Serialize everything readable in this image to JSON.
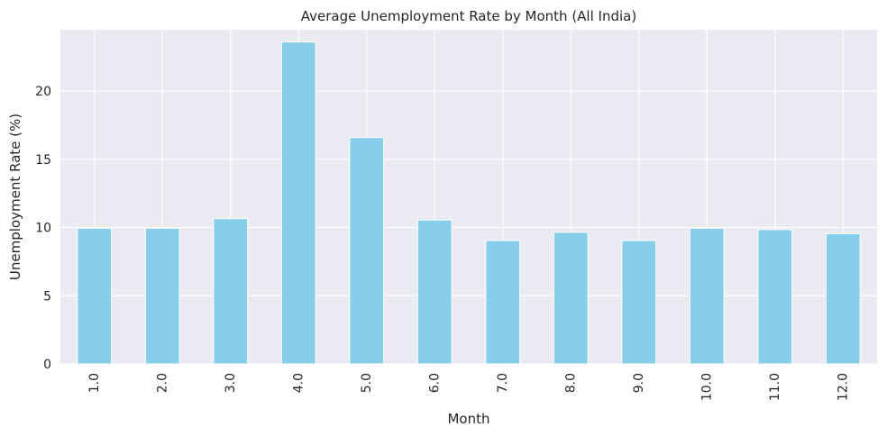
{
  "chart_data": {
    "type": "bar",
    "title": "Average Unemployment Rate by Month (All India)",
    "xlabel": "Month",
    "ylabel": "Unemployment Rate (%)",
    "categories": [
      "1.0",
      "2.0",
      "3.0",
      "4.0",
      "5.0",
      "6.0",
      "7.0",
      "8.0",
      "9.0",
      "10.0",
      "11.0",
      "12.0"
    ],
    "values": [
      9.95,
      9.95,
      10.65,
      23.6,
      16.6,
      10.55,
      9.05,
      9.65,
      9.05,
      9.95,
      9.85,
      9.55
    ],
    "ylim": [
      0,
      24.5
    ],
    "yticks": [
      0,
      5,
      10,
      15,
      20
    ],
    "grid": true,
    "colors": {
      "bar": "#87ceeb",
      "plot_background": "#eaeaf2",
      "grid": "#ffffff"
    }
  }
}
